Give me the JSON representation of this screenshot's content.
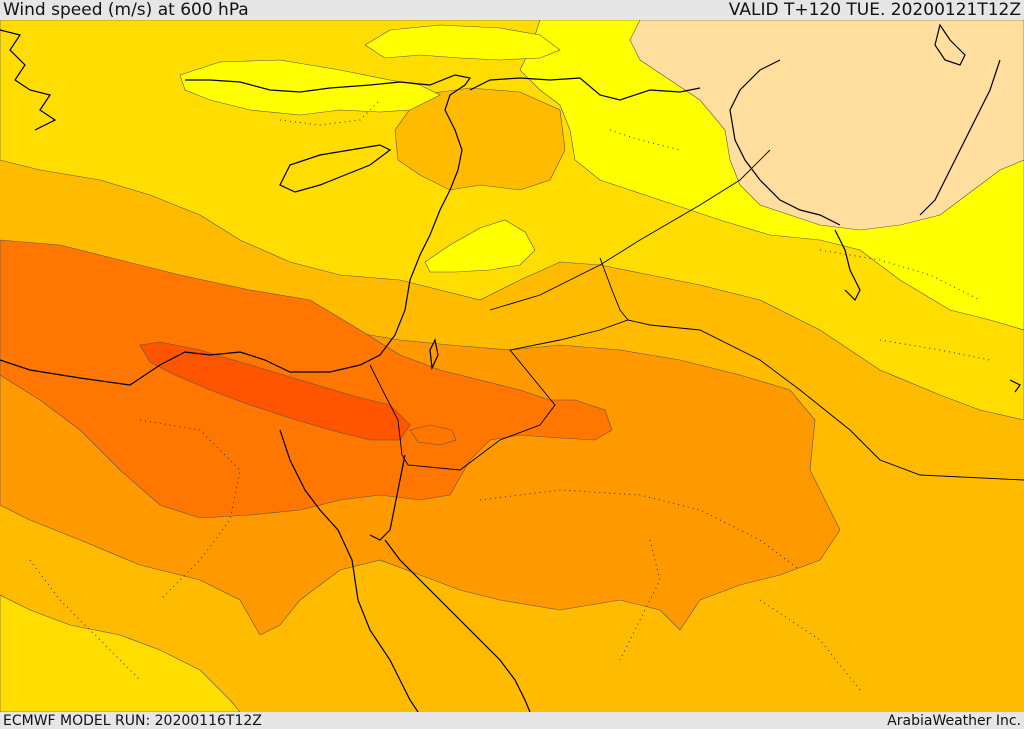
{
  "header": {
    "title": "Wind speed (m/s) at 600 hPa",
    "valid": "VALID T+120 TUE. 20200121T12Z"
  },
  "footer": {
    "model_run": "ECMWF MODEL RUN: 20200116T12Z",
    "credit": "ArabiaWeather Inc."
  },
  "colors": {
    "band_light": "#ffde9e",
    "band_yellow": "#ffff00",
    "band_gold": "#ffdd00",
    "band_amber": "#ffbb00",
    "band_orange": "#ff9900",
    "band_dark_orange": "#ff7700",
    "band_red_orange": "#ff5500",
    "coastline": "#000000",
    "contour": "#555555"
  }
}
